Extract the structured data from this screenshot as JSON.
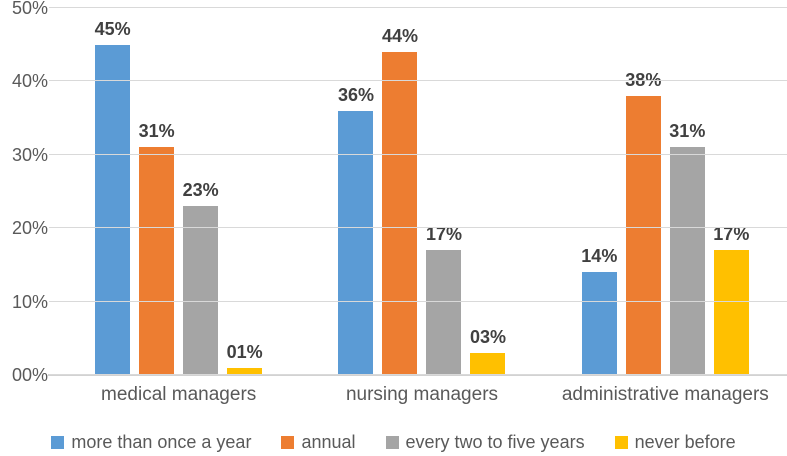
{
  "chart_data": {
    "type": "bar",
    "title": "",
    "categories": [
      "medical managers",
      "nursing managers",
      "administrative managers"
    ],
    "series": [
      {
        "name": "more than once a year",
        "color": "#5B9BD5",
        "values": [
          45,
          36,
          14
        ],
        "value_labels": [
          "45%",
          "36%",
          "14%"
        ]
      },
      {
        "name": "annual",
        "color": "#ED7D31",
        "values": [
          31,
          44,
          38
        ],
        "value_labels": [
          "31%",
          "44%",
          "38%"
        ]
      },
      {
        "name": "every two to five years",
        "color": "#A5A5A5",
        "values": [
          23,
          17,
          31
        ],
        "value_labels": [
          "23%",
          "17%",
          "31%"
        ]
      },
      {
        "name": "never before",
        "color": "#FFC000",
        "values": [
          1,
          3,
          17
        ],
        "value_labels": [
          "01%",
          "03%",
          "17%"
        ]
      }
    ],
    "y_axis": {
      "min": 0,
      "max": 50,
      "tick_step": 10,
      "tick_labels": [
        "00%",
        "10%",
        "20%",
        "30%",
        "40%",
        "50%"
      ],
      "grid": true
    },
    "legend_position": "bottom",
    "styles": {
      "gridline_color": "#d9d9d9",
      "axis_line_color": "#d2d2d2",
      "tick_text_color": "#595959",
      "category_text_color": "#595959",
      "value_label_color": "#404040",
      "legend_text_color": "#595959",
      "background": "#ffffff"
    }
  }
}
